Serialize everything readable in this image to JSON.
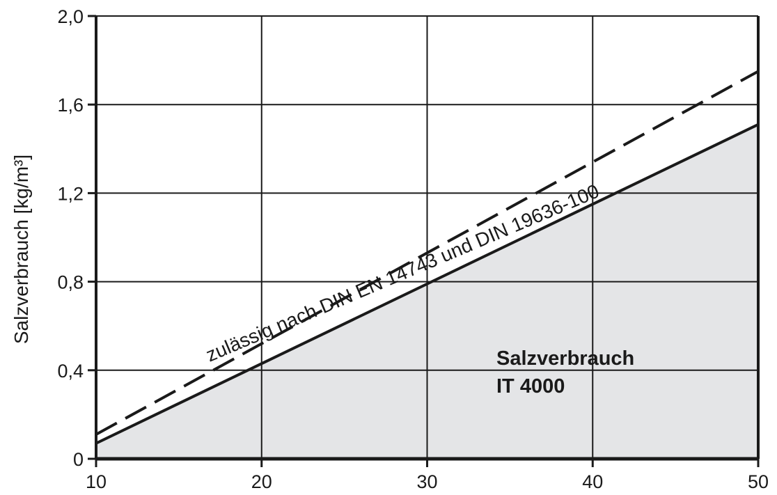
{
  "chart_data": {
    "type": "area",
    "xlabel": "",
    "ylabel": "Salzverbrauch [kg/m³]",
    "xlim": [
      10,
      50
    ],
    "ylim": [
      0,
      2.0
    ],
    "x_ticks": [
      10,
      20,
      30,
      40,
      50
    ],
    "x_tick_labels": [
      "10",
      "20",
      "30",
      "40",
      "50"
    ],
    "y_ticks": [
      0,
      0.4,
      0.8,
      1.2,
      1.6,
      2.0
    ],
    "y_tick_labels": [
      "0",
      "0,4",
      "0,8",
      "1,2",
      "1,6",
      "2,0"
    ],
    "grid": true,
    "series": [
      {
        "name": "zulässig nach DIN EN 14743 und DIN 19636-100",
        "style": "dashed",
        "color": "#1a1a1a",
        "x": [
          10,
          50
        ],
        "y": [
          0.11,
          1.75
        ]
      },
      {
        "name": "Salzverbrauch IT 4000",
        "style": "solid-filled",
        "color": "#1a1a1a",
        "fill": "#e4e5e7",
        "x": [
          10,
          50
        ],
        "y": [
          0.07,
          1.51
        ]
      }
    ],
    "annotations": {
      "area_label_line1": "Salzverbrauch",
      "area_label_line2": "IT 4000",
      "dashed_label": "zulässig nach DIN EN 14743 und DIN 19636-100"
    }
  }
}
